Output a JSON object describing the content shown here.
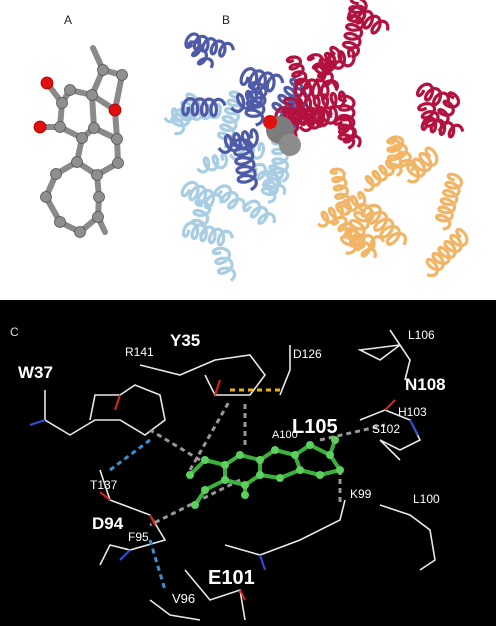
{
  "panels": [
    {
      "label": "A"
    },
    {
      "label": "B"
    },
    {
      "label": "C",
      "residues": [
        "R141",
        "Y35",
        "D126",
        "L106",
        "W37",
        "N108",
        "H103",
        "A100",
        "L105",
        "S102",
        "T137",
        "K99",
        "L100",
        "D94",
        "F95",
        "E101",
        "V96"
      ]
    }
  ]
}
